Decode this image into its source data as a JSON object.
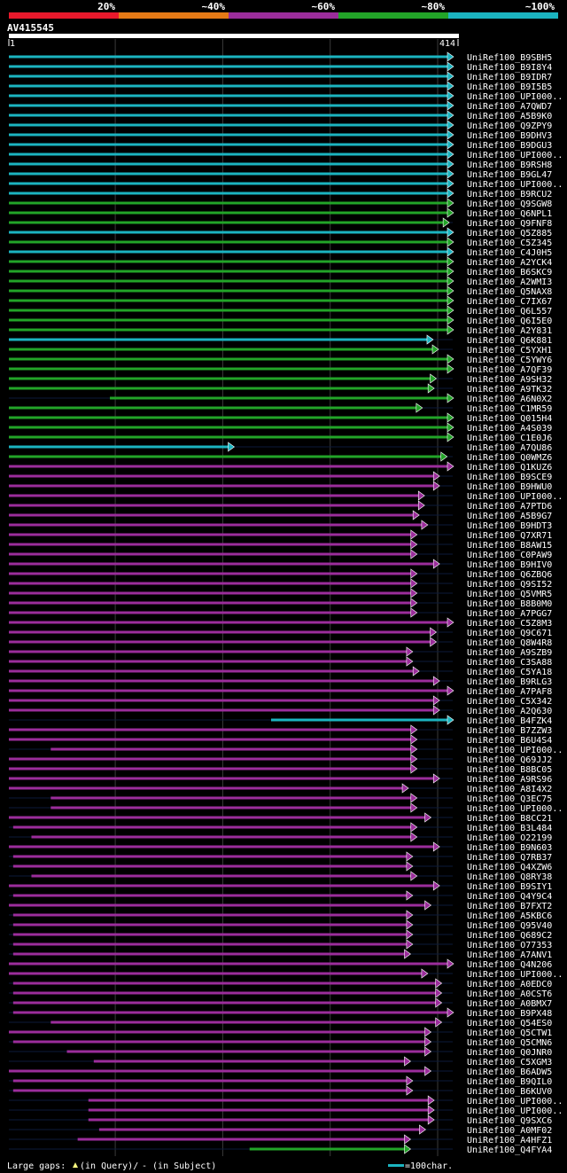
{
  "query_id": "AV415545",
  "query_start": "1",
  "query_end": "414",
  "legend_scale": [
    {
      "label": "20%",
      "color": "#e8192c"
    },
    {
      "label": "~40%",
      "color": "#e67a16"
    },
    {
      "label": "~60%",
      "color": "#9b2d9b"
    },
    {
      "label": "~80%",
      "color": "#22a428"
    },
    {
      "label": "~100%",
      "color": "#1bb4c0"
    }
  ],
  "footer": {
    "gaps_prefix": "Large gaps:",
    "gaps_query": "(in Query)/",
    "gaps_subject": "- (in Subject)",
    "scale_label": "=100char."
  },
  "colors": {
    "cyan": "#1bb4c0",
    "green": "#22a428",
    "magenta": "#9b2d9b",
    "grid": "#3a3a3a",
    "background": "#000000"
  },
  "chart_data": {
    "type": "alignment",
    "x_axis": {
      "min": 1,
      "max": 414,
      "grid_lines": [
        100,
        200,
        300,
        400
      ]
    },
    "legend": "top",
    "hits": [
      {
        "name": "UniRef100_B9SBH5",
        "color": "cyan",
        "start": 1,
        "end": 414
      },
      {
        "name": "UniRef100_B9I8Y4",
        "color": "cyan",
        "start": 1,
        "end": 414
      },
      {
        "name": "UniRef100_B9IDR7",
        "color": "cyan",
        "start": 1,
        "end": 414
      },
      {
        "name": "UniRef100_B9I5B5",
        "color": "cyan",
        "start": 1,
        "end": 414
      },
      {
        "name": "UniRef100_UPI000..",
        "color": "cyan",
        "start": 1,
        "end": 414
      },
      {
        "name": "UniRef100_A7QWD7",
        "color": "cyan",
        "start": 1,
        "end": 414
      },
      {
        "name": "UniRef100_A5B9K0",
        "color": "cyan",
        "start": 1,
        "end": 414
      },
      {
        "name": "UniRef100_Q9ZPY9",
        "color": "cyan",
        "start": 1,
        "end": 414
      },
      {
        "name": "UniRef100_B9DHV3",
        "color": "cyan",
        "start": 1,
        "end": 414
      },
      {
        "name": "UniRef100_B9DGU3",
        "color": "cyan",
        "start": 1,
        "end": 414
      },
      {
        "name": "UniRef100_UPI000..",
        "color": "cyan",
        "start": 1,
        "end": 414
      },
      {
        "name": "UniRef100_B9RSH8",
        "color": "cyan",
        "start": 1,
        "end": 414
      },
      {
        "name": "UniRef100_B9GL47",
        "color": "cyan",
        "start": 1,
        "end": 414
      },
      {
        "name": "UniRef100_UPI000..",
        "color": "cyan",
        "start": 1,
        "end": 414
      },
      {
        "name": "UniRef100_B9RCU2",
        "color": "cyan",
        "start": 1,
        "end": 414
      },
      {
        "name": "UniRef100_Q9SGW8",
        "color": "green",
        "start": 1,
        "end": 414
      },
      {
        "name": "UniRef100_Q6NPL1",
        "color": "green",
        "start": 1,
        "end": 414
      },
      {
        "name": "UniRef100_Q9FNF8",
        "color": "green",
        "start": 1,
        "end": 410
      },
      {
        "name": "UniRef100_Q5Z885",
        "color": "cyan",
        "start": 1,
        "end": 414
      },
      {
        "name": "UniRef100_C5Z345",
        "color": "green",
        "start": 1,
        "end": 414
      },
      {
        "name": "UniRef100_C4J0H5",
        "color": "cyan",
        "start": 1,
        "end": 414
      },
      {
        "name": "UniRef100_A2YCK4",
        "color": "green",
        "start": 1,
        "end": 414
      },
      {
        "name": "UniRef100_B6SKC9",
        "color": "green",
        "start": 1,
        "end": 414
      },
      {
        "name": "UniRef100_A2WMI3",
        "color": "green",
        "start": 1,
        "end": 414
      },
      {
        "name": "UniRef100_Q5NAX8",
        "color": "green",
        "start": 1,
        "end": 414
      },
      {
        "name": "UniRef100_C7IX67",
        "color": "green",
        "start": 1,
        "end": 414
      },
      {
        "name": "UniRef100_Q6L557",
        "color": "green",
        "start": 1,
        "end": 414
      },
      {
        "name": "UniRef100_Q6I5E0",
        "color": "green",
        "start": 1,
        "end": 414
      },
      {
        "name": "UniRef100_A2Y831",
        "color": "green",
        "start": 1,
        "end": 414
      },
      {
        "name": "UniRef100_Q6K881",
        "color": "cyan",
        "start": 1,
        "end": 395
      },
      {
        "name": "UniRef100_C5YXH1",
        "color": "green",
        "start": 1,
        "end": 400
      },
      {
        "name": "UniRef100_C5YWY6",
        "color": "green",
        "start": 1,
        "end": 414
      },
      {
        "name": "UniRef100_A7QF39",
        "color": "green",
        "start": 1,
        "end": 414
      },
      {
        "name": "UniRef100_A9SH32",
        "color": "green",
        "start": 1,
        "end": 398
      },
      {
        "name": "UniRef100_A9TK32",
        "color": "green",
        "start": 1,
        "end": 396
      },
      {
        "name": "UniRef100_A6N0X2",
        "color": "green",
        "start": 95,
        "end": 414
      },
      {
        "name": "UniRef100_C1MR59",
        "color": "green",
        "start": 1,
        "end": 385
      },
      {
        "name": "UniRef100_Q015H4",
        "color": "green",
        "start": 1,
        "end": 414
      },
      {
        "name": "UniRef100_A4S039",
        "color": "green",
        "start": 1,
        "end": 414
      },
      {
        "name": "UniRef100_C1E0J6",
        "color": "green",
        "start": 1,
        "end": 414
      },
      {
        "name": "UniRef100_A7QU86",
        "color": "cyan",
        "start": 1,
        "end": 210
      },
      {
        "name": "UniRef100_Q0WMZ6",
        "color": "green",
        "start": 1,
        "end": 408
      },
      {
        "name": "UniRef100_Q1KUZ6",
        "color": "magenta",
        "start": 1,
        "end": 414
      },
      {
        "name": "UniRef100_B9SCE9",
        "color": "magenta",
        "start": 1,
        "end": 401
      },
      {
        "name": "UniRef100_B9HWU0",
        "color": "magenta",
        "start": 1,
        "end": 401
      },
      {
        "name": "UniRef100_UPI000..",
        "color": "magenta",
        "start": 1,
        "end": 387
      },
      {
        "name": "UniRef100_A7PTD6",
        "color": "magenta",
        "start": 1,
        "end": 387
      },
      {
        "name": "UniRef100_A5B9G7",
        "color": "magenta",
        "start": 1,
        "end": 382
      },
      {
        "name": "UniRef100_B9HDT3",
        "color": "magenta",
        "start": 1,
        "end": 390
      },
      {
        "name": "UniRef100_Q7XR71",
        "color": "magenta",
        "start": 1,
        "end": 380
      },
      {
        "name": "UniRef100_B8AW15",
        "color": "magenta",
        "start": 1,
        "end": 380
      },
      {
        "name": "UniRef100_C0PAW9",
        "color": "magenta",
        "start": 1,
        "end": 380
      },
      {
        "name": "UniRef100_B9HIV0",
        "color": "magenta",
        "start": 1,
        "end": 401
      },
      {
        "name": "UniRef100_Q6ZBQ6",
        "color": "magenta",
        "start": 1,
        "end": 380
      },
      {
        "name": "UniRef100_Q9SI52",
        "color": "magenta",
        "start": 1,
        "end": 380
      },
      {
        "name": "UniRef100_Q5VMR5",
        "color": "magenta",
        "start": 1,
        "end": 380
      },
      {
        "name": "UniRef100_B8B0M0",
        "color": "magenta",
        "start": 1,
        "end": 380
      },
      {
        "name": "UniRef100_A7PGG7",
        "color": "magenta",
        "start": 1,
        "end": 380
      },
      {
        "name": "UniRef100_C5Z8M3",
        "color": "magenta",
        "start": 1,
        "end": 414
      },
      {
        "name": "UniRef100_Q9C671",
        "color": "magenta",
        "start": 1,
        "end": 398
      },
      {
        "name": "UniRef100_Q8W4R8",
        "color": "magenta",
        "start": 1,
        "end": 398
      },
      {
        "name": "UniRef100_A9SZB9",
        "color": "magenta",
        "start": 1,
        "end": 376
      },
      {
        "name": "UniRef100_C3SA88",
        "color": "magenta",
        "start": 1,
        "end": 376
      },
      {
        "name": "UniRef100_C5YA18",
        "color": "magenta",
        "start": 1,
        "end": 382
      },
      {
        "name": "UniRef100_B9RLG3",
        "color": "magenta",
        "start": 1,
        "end": 401
      },
      {
        "name": "UniRef100_A7PAF8",
        "color": "magenta",
        "start": 1,
        "end": 414
      },
      {
        "name": "UniRef100_C5X342",
        "color": "magenta",
        "start": 1,
        "end": 401
      },
      {
        "name": "UniRef100_A2Q630",
        "color": "magenta",
        "start": 1,
        "end": 401
      },
      {
        "name": "UniRef100_B4FZK4",
        "color": "cyan",
        "start": 245,
        "end": 414
      },
      {
        "name": "UniRef100_B7ZZW3",
        "color": "magenta",
        "start": 1,
        "end": 380
      },
      {
        "name": "UniRef100_B6U4S4",
        "color": "magenta",
        "start": 1,
        "end": 380
      },
      {
        "name": "UniRef100_UPI000..",
        "color": "magenta",
        "start": 40,
        "end": 380
      },
      {
        "name": "UniRef100_Q69JJ2",
        "color": "magenta",
        "start": 1,
        "end": 380
      },
      {
        "name": "UniRef100_B8BC05",
        "color": "magenta",
        "start": 1,
        "end": 380
      },
      {
        "name": "UniRef100_A9RS96",
        "color": "magenta",
        "start": 1,
        "end": 401
      },
      {
        "name": "UniRef100_A8I4X2",
        "color": "magenta",
        "start": 1,
        "end": 372
      },
      {
        "name": "UniRef100_Q3EC75",
        "color": "magenta",
        "start": 40,
        "end": 380
      },
      {
        "name": "UniRef100_UPI000..",
        "color": "magenta",
        "start": 40,
        "end": 380
      },
      {
        "name": "UniRef100_B8CC21",
        "color": "magenta",
        "start": 1,
        "end": 393
      },
      {
        "name": "UniRef100_B3L484",
        "color": "magenta",
        "start": 5,
        "end": 380
      },
      {
        "name": "UniRef100_O22199",
        "color": "magenta",
        "start": 22,
        "end": 380
      },
      {
        "name": "UniRef100_B9N603",
        "color": "magenta",
        "start": 1,
        "end": 401
      },
      {
        "name": "UniRef100_Q7RB37",
        "color": "magenta",
        "start": 5,
        "end": 376
      },
      {
        "name": "UniRef100_Q4XZW6",
        "color": "magenta",
        "start": 5,
        "end": 376
      },
      {
        "name": "UniRef100_Q8RY38",
        "color": "magenta",
        "start": 22,
        "end": 380
      },
      {
        "name": "UniRef100_B9SIY1",
        "color": "magenta",
        "start": 1,
        "end": 401
      },
      {
        "name": "UniRef100_Q4Y9C4",
        "color": "magenta",
        "start": 5,
        "end": 376
      },
      {
        "name": "UniRef100_B7FXT2",
        "color": "magenta",
        "start": 1,
        "end": 393
      },
      {
        "name": "UniRef100_A5KBC6",
        "color": "magenta",
        "start": 5,
        "end": 376
      },
      {
        "name": "UniRef100_Q95V40",
        "color": "magenta",
        "start": 5,
        "end": 376
      },
      {
        "name": "UniRef100_Q689C2",
        "color": "magenta",
        "start": 5,
        "end": 376
      },
      {
        "name": "UniRef100_O77353",
        "color": "magenta",
        "start": 5,
        "end": 376
      },
      {
        "name": "UniRef100_A7ANV1",
        "color": "magenta",
        "start": 5,
        "end": 374
      },
      {
        "name": "UniRef100_Q4N206",
        "color": "magenta",
        "start": 1,
        "end": 414
      },
      {
        "name": "UniRef100_UPI000..",
        "color": "magenta",
        "start": 1,
        "end": 390
      },
      {
        "name": "UniRef100_A0EDC0",
        "color": "magenta",
        "start": 5,
        "end": 403
      },
      {
        "name": "UniRef100_A0CST6",
        "color": "magenta",
        "start": 5,
        "end": 403
      },
      {
        "name": "UniRef100_A0BMX7",
        "color": "magenta",
        "start": 5,
        "end": 403
      },
      {
        "name": "UniRef100_B9PX48",
        "color": "magenta",
        "start": 5,
        "end": 414
      },
      {
        "name": "UniRef100_Q54ES0",
        "color": "magenta",
        "start": 40,
        "end": 403
      },
      {
        "name": "UniRef100_Q5CTW1",
        "color": "magenta",
        "start": 1,
        "end": 393
      },
      {
        "name": "UniRef100_Q5CMN6",
        "color": "magenta",
        "start": 5,
        "end": 393
      },
      {
        "name": "UniRef100_Q0JNR0",
        "color": "magenta",
        "start": 55,
        "end": 393
      },
      {
        "name": "UniRef100_C5XGM3",
        "color": "magenta",
        "start": 80,
        "end": 374
      },
      {
        "name": "UniRef100_B6ADW5",
        "color": "magenta",
        "start": 1,
        "end": 393
      },
      {
        "name": "UniRef100_B9QIL0",
        "color": "magenta",
        "start": 5,
        "end": 376
      },
      {
        "name": "UniRef100_B6KUV0",
        "color": "magenta",
        "start": 5,
        "end": 376
      },
      {
        "name": "UniRef100_UPI000..",
        "color": "magenta",
        "start": 75,
        "end": 396
      },
      {
        "name": "UniRef100_UPI000..",
        "color": "magenta",
        "start": 75,
        "end": 396
      },
      {
        "name": "UniRef100_Q9SXC6",
        "color": "magenta",
        "start": 75,
        "end": 396
      },
      {
        "name": "UniRef100_A0MF02",
        "color": "magenta",
        "start": 85,
        "end": 388
      },
      {
        "name": "UniRef100_A4HFZ1",
        "color": "magenta",
        "start": 65,
        "end": 374
      },
      {
        "name": "UniRef100_Q4FYA4",
        "color": "green",
        "start": 225,
        "end": 374
      }
    ]
  }
}
